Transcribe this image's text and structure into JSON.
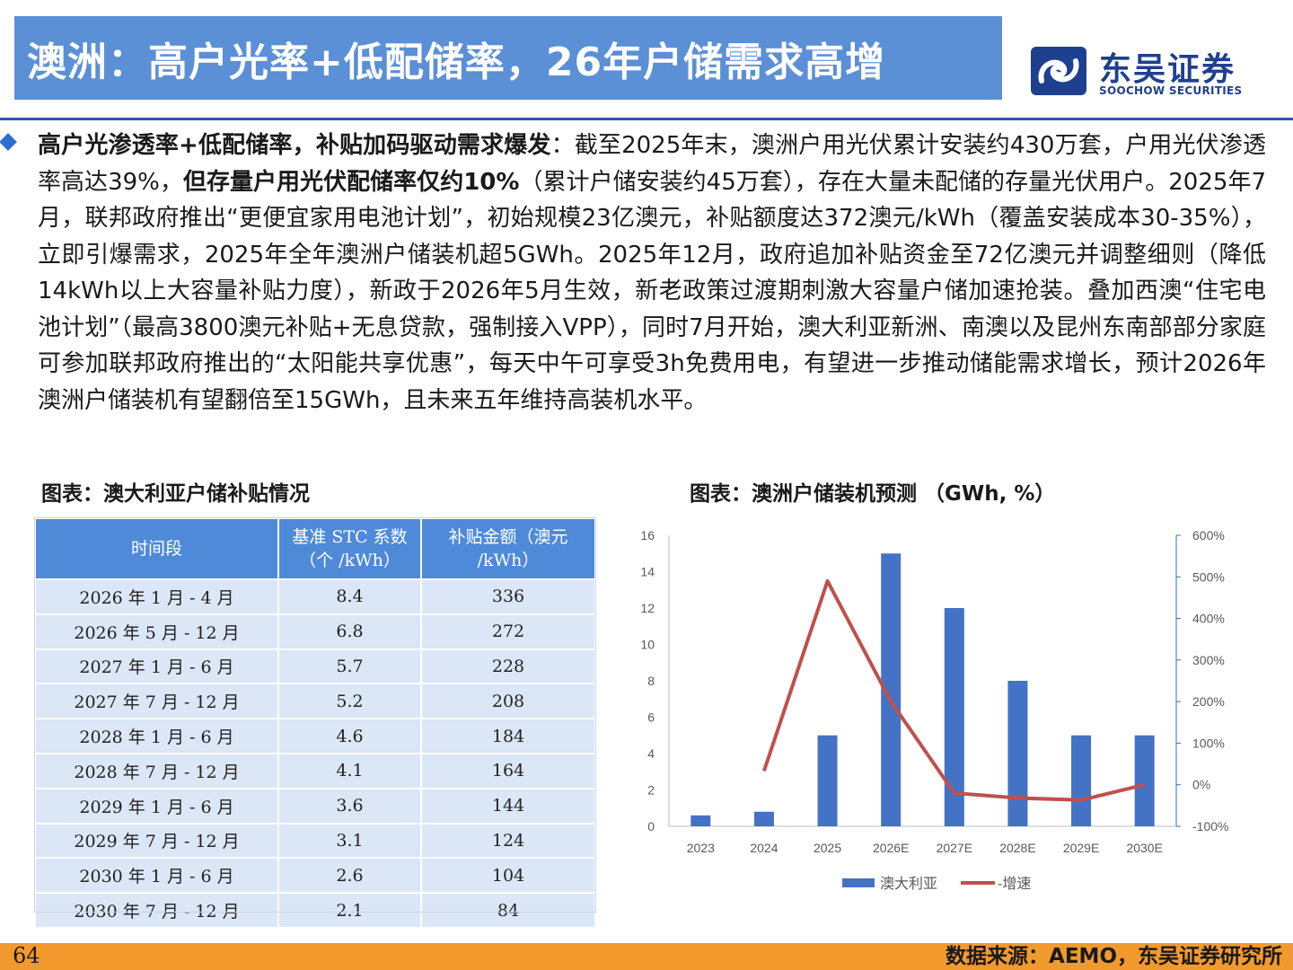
{
  "title": "澳洲：高户光率+低配储率，26年户储需求高增",
  "logo": {
    "cn": "东吴证券",
    "en": "SOOCHOW SECURITIES"
  },
  "paragraph": {
    "lead": "高户光渗透率+低配储率，补贴加码驱动需求爆发",
    "part1": "：截至2025年末，澳洲户用光伏累计安装约430万套，户用光伏渗透率高达39%，",
    "bold2": "但存量户用光伏配储率仅约10%",
    "part2": "（累计户储安装约45万套），存在大量未配储的存量光伏用户。2025年7月，联邦政府推出“更便宜家用电池计划”，初始规模23亿澳元，补贴额度达372澳元/kWh（覆盖安装成本30-35%），立即引爆需求，2025年全年澳洲户储装机超5GWh。2025年12月，政府追加补贴资金至72亿澳元并调整细则（降低14kWh以上大容量补贴力度），新政于2026年5月生效，新老政策过渡期刺激大容量户储加速抢装。叠加西澳“住宅电池计划”（最高3800澳元补贴+无息贷款，强制接入VPP），同时7月开始，澳大利亚新洲、南澳以及昆州东南部部分家庭可参加联邦政府推出的“太阳能共享优惠”，每天中午可享受3h免费用电，有望进一步推动储能需求增长，预计2026年澳洲户储装机有望翻倍至15GWh，且未来五年维持高装机水平。"
  },
  "table_caption": "图表：澳大利亚户储补贴情况",
  "table": {
    "headers": [
      "时间段",
      "基准 STC 系数（个 /kWh）",
      "补贴金额（澳元 /kWh）"
    ],
    "rows": [
      [
        "2026 年 1 月 - 4 月",
        "8.4",
        "336"
      ],
      [
        "2026 年 5 月 - 12 月",
        "6.8",
        "272"
      ],
      [
        "2027 年 1 月 - 6 月",
        "5.7",
        "228"
      ],
      [
        "2027 年 7 月 - 12 月",
        "5.2",
        "208"
      ],
      [
        "2028 年 1 月 - 6 月",
        "4.6",
        "184"
      ],
      [
        "2028 年 7 月 - 12 月",
        "4.1",
        "164"
      ],
      [
        "2029 年 1 月 - 6 月",
        "3.6",
        "144"
      ],
      [
        "2029 年 7 月 - 12 月",
        "3.1",
        "124"
      ],
      [
        "2030 年 1 月 - 6 月",
        "2.6",
        "104"
      ],
      [
        "2030 年 7 月 - 12 月",
        "2.1",
        "84"
      ]
    ]
  },
  "chart_caption": "图表：澳洲户储装机预测 （GWh, %）",
  "chart_data": {
    "type": "bar",
    "title": "图表：澳洲户储装机预测 （GWh, %）",
    "categories": [
      "2023",
      "2024",
      "2025",
      "2026E",
      "2027E",
      "2028E",
      "2029E",
      "2030E"
    ],
    "series": [
      {
        "name": "澳大利亚",
        "type": "bar",
        "axis": "left",
        "values": [
          0.6,
          0.8,
          5,
          15,
          12,
          8,
          5,
          5
        ],
        "color": "#4472c4"
      },
      {
        "name": "-增速",
        "type": "line",
        "axis": "right",
        "values": [
          null,
          33,
          490,
          200,
          -20,
          -32,
          -37,
          0
        ],
        "color": "#c0504d"
      }
    ],
    "y_left": {
      "ylim": [
        0,
        16
      ],
      "ticks": [
        "0",
        "2",
        "4",
        "6",
        "8",
        "10",
        "12",
        "14",
        "16"
      ]
    },
    "y_right": {
      "ylim": [
        -100,
        600
      ],
      "ticks": [
        "-100%",
        "0%",
        "100%",
        "200%",
        "300%",
        "400%",
        "500%",
        "600%"
      ]
    },
    "legend_position": "bottom",
    "grid": false
  },
  "page_number": "64",
  "source": "数据来源：AEMO，东吴证券研究所",
  "colors": {
    "banner": "#5b8fd6",
    "header_rule": "#2e5aa8",
    "table_header": "#4f8ad8",
    "table_cell": "#dbe6f6",
    "footer": "#f39a2e"
  }
}
